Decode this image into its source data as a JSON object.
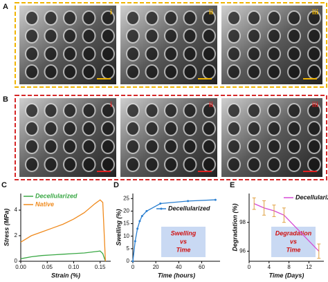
{
  "panels": {
    "A": {
      "label": "A",
      "images": [
        {
          "label": "i"
        },
        {
          "label": "ii"
        },
        {
          "label": "iii"
        }
      ]
    },
    "B": {
      "label": "B",
      "images": [
        {
          "label": "i"
        },
        {
          "label": "ii"
        },
        {
          "label": "iii"
        }
      ]
    }
  },
  "chart_data": [
    {
      "type": "line",
      "panel": "C",
      "x_label": "Strain (%)",
      "y_label": "Stress (MPa)",
      "x": [
        0,
        0.02,
        0.04,
        0.06,
        0.08,
        0.1,
        0.12,
        0.14,
        0.15,
        0.155,
        0.16
      ],
      "series": [
        {
          "name": "Decellularized",
          "color": "#3aa845",
          "values": [
            0.2,
            0.35,
            0.45,
            0.5,
            0.55,
            0.6,
            0.65,
            0.75,
            0.8,
            0.6,
            0
          ]
        },
        {
          "name": "Native",
          "color": "#f08a1c",
          "values": [
            1.5,
            2.0,
            2.3,
            2.6,
            2.9,
            3.3,
            3.8,
            4.5,
            4.8,
            4.6,
            0
          ]
        }
      ],
      "xlim": [
        0,
        0.17
      ],
      "ylim": [
        0,
        5.3
      ],
      "xticks": [
        {
          "value": 0,
          "label": "0.00"
        },
        0.05,
        {
          "value": 0.1,
          "label": "0.10"
        },
        0.15
      ],
      "yticks": [
        0,
        2,
        4
      ]
    },
    {
      "type": "line",
      "panel": "D",
      "x_label": "Time (hours)",
      "y_label": "Swelling (%)",
      "x": [
        0,
        2,
        4,
        6,
        8,
        12,
        24,
        48,
        72
      ],
      "series": [
        {
          "name": "Decellularized",
          "color": "#2a7fd0",
          "values": [
            0,
            8,
            13,
            16,
            18,
            20,
            23,
            24,
            24.5
          ]
        }
      ],
      "xlim": [
        0,
        76
      ],
      "ylim": [
        0,
        27
      ],
      "xticks": [
        0,
        20,
        40,
        60
      ],
      "yticks": [
        0,
        5,
        10,
        15,
        20,
        25
      ],
      "annotation": [
        "Swelling",
        "vs",
        "Time"
      ]
    },
    {
      "type": "line",
      "panel": "E",
      "x_label": "Time (Days)",
      "y_label": "Degradation (%)",
      "x": [
        1,
        3,
        5,
        7,
        14
      ],
      "series": [
        {
          "name": "Decellularized",
          "color": "#d54bd5",
          "values": [
            99.3,
            99.0,
            98.8,
            98.5,
            96.0
          ],
          "errors": [
            0.4,
            0.5,
            0.4,
            0.5,
            0.5
          ],
          "error_color": "#e0a040"
        }
      ],
      "xlim": [
        0,
        15
      ],
      "ylim": [
        95.3,
        100
      ],
      "xticks": [
        0,
        4,
        8,
        12
      ],
      "yticks": [
        96,
        98
      ],
      "annotation": [
        "Degradation",
        "vs",
        "Time"
      ]
    }
  ]
}
